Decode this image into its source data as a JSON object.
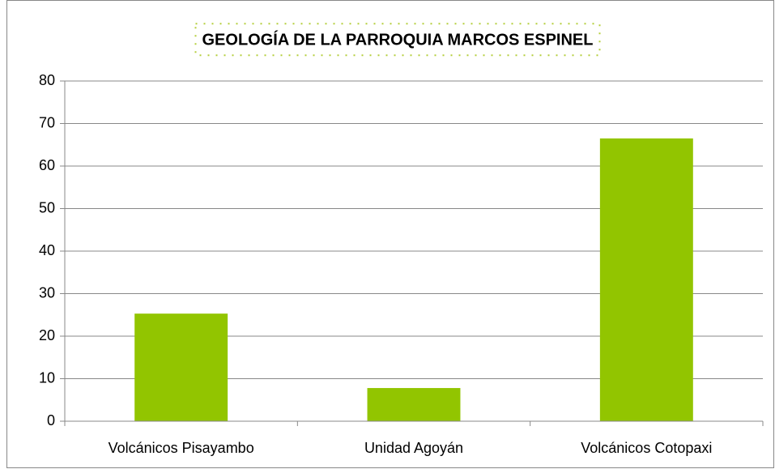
{
  "chart_data": {
    "type": "bar",
    "title": "GEOLOGÍA DE LA PARROQUIA MARCOS ESPINEL",
    "categories": [
      "Volcánicos Pisayambo",
      "Unidad Agoyán",
      "Volcánicos Cotopaxi"
    ],
    "values": [
      25.3,
      7.8,
      66.5
    ],
    "color": "#92c500",
    "ylim": [
      0,
      80
    ],
    "yticks": [
      0,
      10,
      20,
      30,
      40,
      50,
      60,
      70,
      80
    ],
    "grid": true
  }
}
